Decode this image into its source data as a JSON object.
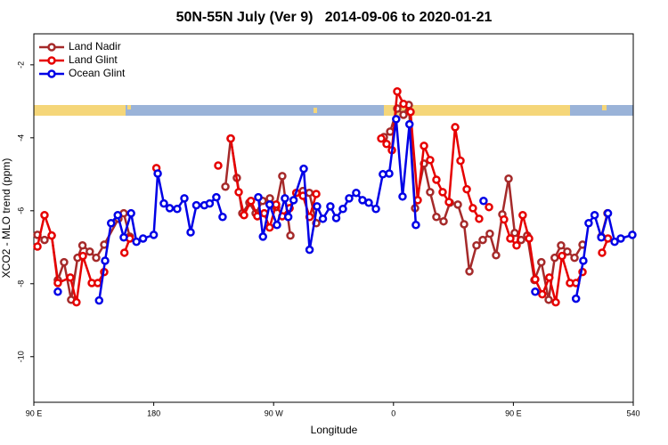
{
  "chart_data": {
    "type": "line",
    "title": "50N-55N July (Ver 9)   2014-09-06 to 2020-01-21",
    "x_label": "Longitude",
    "y_label": "XCO2 - MLO trend (ppm)",
    "xlim": [
      90,
      540
    ],
    "ylim": [
      -11.25,
      -1.15
    ],
    "xticks": [
      {
        "value": 90,
        "label": "90 E"
      },
      180,
      {
        "value": 270,
        "label": "90 W"
      },
      {
        "value": 360,
        "label": "0"
      },
      {
        "value": 450,
        "label": "90 E"
      },
      540
    ],
    "yticks": [
      -2,
      -4,
      -6,
      -8,
      -10
    ],
    "legend": "top-left",
    "series": [
      {
        "name": "Land Nadir",
        "color": "#a52a2a",
        "x": [
          92.7,
          98,
          103.4,
          108,
          112.7,
          118,
          122.8,
          126.5,
          132,
          136.8,
          142.8,
          153.5,
          157.5,
          162,
          null,
          233.8,
          237.8,
          242.4,
          246.5,
          251.8,
          256.5,
          261.8,
          267.2,
          271.9,
          276.5,
          282.6,
          null,
          292,
          296.8,
          302,
          null,
          352.8,
          357.5,
          362.8,
          367.5,
          371.5,
          376.2,
          382.9,
          387.5,
          392.2,
          397.6,
          402.3,
          408.3,
          413,
          417,
          422.3,
          427,
          432.3,
          437,
          441.7,
          446.4,
          451,
          455.8,
          460.4,
          465.8,
          471,
          476.5,
          481,
          485.8,
          490.5,
          495.9,
          501.9,
          null,
          516,
          520.6
        ],
        "values": [
          -6.66,
          -6.8,
          -6.68,
          -7.9,
          -7.41,
          -8.44,
          -7.29,
          -6.95,
          -7.12,
          -7.29,
          -6.93,
          -6.22,
          -6.07,
          -6.71,
          null,
          -5.34,
          -4.02,
          -5.1,
          -6.07,
          -5.78,
          -6.07,
          -5.73,
          -5.66,
          -5.9,
          -5.05,
          -6.68,
          null,
          -5.46,
          -5.51,
          -6.34,
          null,
          -3.98,
          -3.83,
          -3.2,
          -3.37,
          -3.1,
          -5.93,
          -4.71,
          -5.49,
          -6.17,
          -6.29,
          -5.78,
          -5.83,
          -6.37,
          -7.66,
          -6.95,
          -6.8,
          -6.63,
          -7.22,
          -6.1,
          -5.12,
          -6.61,
          -6.8,
          -6.68,
          -7.9,
          -7.41,
          -8.44,
          -7.29,
          -6.95,
          -7.12,
          -7.29,
          -6.93,
          null,
          -6.71,
          -6.07
        ]
      },
      {
        "name": "Land Glint",
        "color": "#e60000",
        "x": [
          92.7,
          98,
          103.4,
          108,
          117.4,
          122,
          126.8,
          133.5,
          138,
          142.8,
          null,
          158,
          162,
          null,
          182,
          null,
          228.4,
          null,
          237.8,
          243.8,
          247.8,
          253,
          257.8,
          263,
          267,
          271.9,
          276.5,
          282,
          287,
          292,
          297,
          302,
          null,
          350.8,
          354.8,
          358.8,
          362.8,
          367.5,
          372.8,
          378.2,
          382.9,
          387.5,
          392.2,
          396.9,
          401.6,
          406.3,
          410.3,
          415,
          419.6,
          424.3,
          null,
          431.7,
          null,
          443,
          447.7,
          452.4,
          457,
          461.8,
          466.4,
          471.7,
          477,
          481.8,
          486.5,
          492.5,
          497,
          501.9,
          null,
          516.6,
          521
        ],
        "values": [
          -6.98,
          -6.12,
          -6.68,
          -7.98,
          -7.83,
          -8.51,
          -7.24,
          -7.98,
          -7.98,
          -7.68,
          null,
          -7.15,
          -6.76,
          null,
          -4.83,
          null,
          -4.76,
          null,
          -4.02,
          -5.49,
          -6.12,
          -5.73,
          -6.15,
          -6.07,
          -6.46,
          -5.83,
          -6.15,
          -5.93,
          -5.51,
          -5.59,
          -6.17,
          -5.54,
          null,
          -4.02,
          -4.17,
          -4.34,
          -2.73,
          -3.07,
          -3.29,
          -5.71,
          -4.22,
          -4.61,
          -5.15,
          -5.49,
          -5.76,
          -3.71,
          -4.63,
          -5.41,
          -5.93,
          -6.22,
          null,
          -5.9,
          null,
          -6.24,
          -6.76,
          -6.95,
          -6.12,
          -6.76,
          -7.88,
          -8.29,
          -7.83,
          -8.51,
          -7.24,
          -7.98,
          -7.98,
          -7.68,
          null,
          -7.15,
          -6.76
        ]
      },
      {
        "name": "Ocean Glint",
        "color": "#0000e6",
        "x": [
          108,
          null,
          139,
          143.5,
          148,
          153,
          157.5,
          163,
          167,
          172,
          180,
          183,
          187.6,
          192,
          197.6,
          203,
          207.7,
          212,
          218,
          222,
          227,
          231.7,
          null,
          258.5,
          262,
          267,
          272.5,
          278.5,
          281,
          285,
          292.6,
          297,
          302.6,
          307,
          312.6,
          317,
          322,
          326.7,
          332,
          336.7,
          341.4,
          346.8,
          352,
          356.8,
          362,
          366.8,
          372,
          376.8,
          null,
          427.6,
          null,
          466.4,
          null,
          497,
          502.5,
          506.5,
          511,
          516,
          521,
          526,
          530.6,
          539.3
        ],
        "values": [
          -8.22,
          null,
          -8.46,
          -7.37,
          -6.34,
          -6.12,
          -6.73,
          -6.07,
          -6.85,
          -6.76,
          -6.66,
          -4.98,
          -5.8,
          -5.93,
          -5.95,
          -5.66,
          -6.59,
          -5.85,
          -5.85,
          -5.8,
          -5.63,
          -6.17,
          null,
          -5.63,
          -6.71,
          -5.83,
          -6.39,
          -5.66,
          -6.17,
          -5.71,
          -4.85,
          -7.07,
          -5.88,
          -6.22,
          -5.88,
          -6.2,
          -5.95,
          -5.66,
          -5.51,
          -5.71,
          -5.78,
          -5.95,
          -5.0,
          -4.98,
          -3.49,
          -5.61,
          -3.63,
          -6.39,
          null,
          -5.73,
          null,
          -8.22,
          null,
          -8.41,
          -7.37,
          -6.34,
          -6.12,
          -6.73,
          -6.07,
          -6.85,
          -6.76,
          -6.66
        ]
      }
    ]
  }
}
